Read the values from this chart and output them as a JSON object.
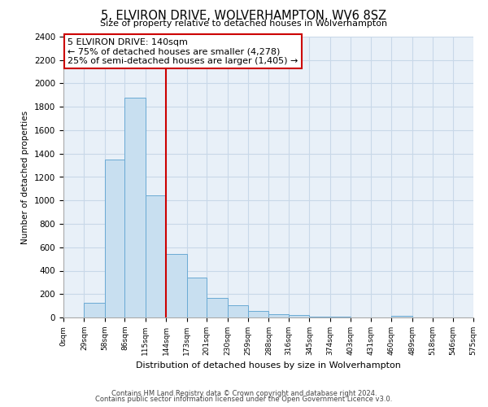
{
  "title": "5, ELVIRON DRIVE, WOLVERHAMPTON, WV6 8SZ",
  "subtitle": "Size of property relative to detached houses in Wolverhampton",
  "xlabel": "Distribution of detached houses by size in Wolverhampton",
  "ylabel": "Number of detached properties",
  "bar_color": "#c8dff0",
  "bar_edge_color": "#6aaad4",
  "plot_bg_color": "#e8f0f8",
  "bin_labels": [
    "0sqm",
    "29sqm",
    "58sqm",
    "86sqm",
    "115sqm",
    "144sqm",
    "173sqm",
    "201sqm",
    "230sqm",
    "259sqm",
    "288sqm",
    "316sqm",
    "345sqm",
    "374sqm",
    "403sqm",
    "431sqm",
    "460sqm",
    "489sqm",
    "518sqm",
    "546sqm",
    "575sqm"
  ],
  "bin_edges": [
    0,
    29,
    58,
    86,
    115,
    144,
    173,
    201,
    230,
    259,
    288,
    316,
    345,
    374,
    403,
    431,
    460,
    489,
    518,
    546,
    575
  ],
  "bar_heights": [
    0,
    125,
    1350,
    1880,
    1040,
    545,
    340,
    165,
    105,
    55,
    30,
    20,
    10,
    5,
    0,
    0,
    12,
    0,
    0,
    0,
    20
  ],
  "ylim": [
    0,
    2400
  ],
  "yticks": [
    0,
    200,
    400,
    600,
    800,
    1000,
    1200,
    1400,
    1600,
    1800,
    2000,
    2200,
    2400
  ],
  "property_line_x": 144,
  "property_line_color": "#cc0000",
  "annotation_title": "5 ELVIRON DRIVE: 140sqm",
  "annotation_line1": "← 75% of detached houses are smaller (4,278)",
  "annotation_line2": "25% of semi-detached houses are larger (1,405) →",
  "annotation_box_color": "#ffffff",
  "annotation_box_edge_color": "#cc0000",
  "footer_line1": "Contains HM Land Registry data © Crown copyright and database right 2024.",
  "footer_line2": "Contains public sector information licensed under the Open Government Licence v3.0.",
  "background_color": "#ffffff",
  "grid_color": "#c8d8e8"
}
